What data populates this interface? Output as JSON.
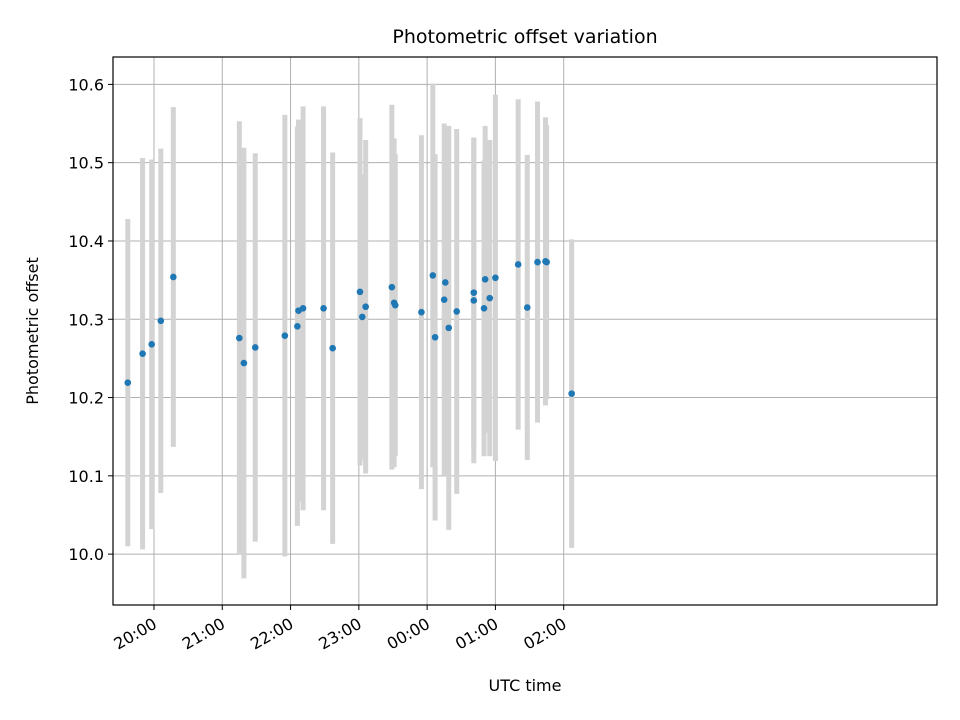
{
  "chart_data": {
    "type": "scatter",
    "title": "Photometric offset variation",
    "xlabel": "UTC time",
    "ylabel": "Photometric offset",
    "x_unit": "minutes",
    "xlim": [
      1164,
      1888
    ],
    "ylim": [
      9.935,
      10.635
    ],
    "x_ticks": [
      {
        "value": 1200,
        "label": "20:00"
      },
      {
        "value": 1260,
        "label": "21:00"
      },
      {
        "value": 1320,
        "label": "22:00"
      },
      {
        "value": 1380,
        "label": "23:00"
      },
      {
        "value": 1440,
        "label": "00:00"
      },
      {
        "value": 1500,
        "label": "01:00"
      },
      {
        "value": 1560,
        "label": "02:00"
      }
    ],
    "y_ticks": [
      10.0,
      10.1,
      10.2,
      10.3,
      10.4,
      10.5,
      10.6
    ],
    "y_tick_labels": [
      "10.0",
      "10.1",
      "10.2",
      "10.3",
      "10.4",
      "10.5",
      "10.6"
    ],
    "grid": true,
    "point_color": "#1f77b4",
    "errorbar_color": "#d3d3d3",
    "points": [
      {
        "x": "19:37",
        "y": 10.219,
        "err": 0.209
      },
      {
        "x": "19:50",
        "y": 10.256,
        "err": 0.25
      },
      {
        "x": "19:58",
        "y": 10.268,
        "err": 0.236
      },
      {
        "x": "20:06",
        "y": 10.298,
        "err": 0.22
      },
      {
        "x": "20:17",
        "y": 10.354,
        "err": 0.217
      },
      {
        "x": "21:15",
        "y": 10.276,
        "err": 0.277
      },
      {
        "x": "21:19",
        "y": 10.244,
        "err": 0.275
      },
      {
        "x": "21:29",
        "y": 10.264,
        "err": 0.248
      },
      {
        "x": "21:55",
        "y": 10.279,
        "err": 0.282
      },
      {
        "x": "22:06",
        "y": 10.291,
        "err": 0.255
      },
      {
        "x": "22:07",
        "y": 10.311,
        "err": 0.244
      },
      {
        "x": "22:11",
        "y": 10.314,
        "err": 0.258
      },
      {
        "x": "22:29",
        "y": 10.314,
        "err": 0.258
      },
      {
        "x": "22:37",
        "y": 10.263,
        "err": 0.25
      },
      {
        "x": "23:01",
        "y": 10.335,
        "err": 0.222
      },
      {
        "x": "23:03",
        "y": 10.303,
        "err": 0.182
      },
      {
        "x": "23:06",
        "y": 10.316,
        "err": 0.213
      },
      {
        "x": "23:29",
        "y": 10.341,
        "err": 0.233
      },
      {
        "x": "23:31",
        "y": 10.321,
        "err": 0.21
      },
      {
        "x": "23:32",
        "y": 10.318,
        "err": 0.193
      },
      {
        "x": "23:55",
        "y": 10.309,
        "err": 0.226
      },
      {
        "x": "00:05",
        "y": 10.356,
        "err": 0.245
      },
      {
        "x": "00:07",
        "y": 10.277,
        "err": 0.234
      },
      {
        "x": "00:15",
        "y": 10.325,
        "err": 0.225
      },
      {
        "x": "00:16",
        "y": 10.347,
        "err": 0.197
      },
      {
        "x": "00:19",
        "y": 10.289,
        "err": 0.258
      },
      {
        "x": "00:26",
        "y": 10.31,
        "err": 0.233
      },
      {
        "x": "00:41",
        "y": 10.324,
        "err": 0.208
      },
      {
        "x": "00:41",
        "y": 10.334,
        "err": 0.198
      },
      {
        "x": "00:50",
        "y": 10.314,
        "err": 0.189
      },
      {
        "x": "00:51",
        "y": 10.351,
        "err": 0.196
      },
      {
        "x": "00:55",
        "y": 10.327,
        "err": 0.202
      },
      {
        "x": "01:00",
        "y": 10.353,
        "err": 0.234
      },
      {
        "x": "01:20",
        "y": 10.37,
        "err": 0.211
      },
      {
        "x": "01:28",
        "y": 10.315,
        "err": 0.195
      },
      {
        "x": "01:37",
        "y": 10.373,
        "err": 0.205
      },
      {
        "x": "01:44",
        "y": 10.374,
        "err": 0.184
      },
      {
        "x": "01:45",
        "y": 10.373,
        "err": 0.175
      },
      {
        "x": "02:07",
        "y": 10.205,
        "err": 0.197
      }
    ]
  }
}
